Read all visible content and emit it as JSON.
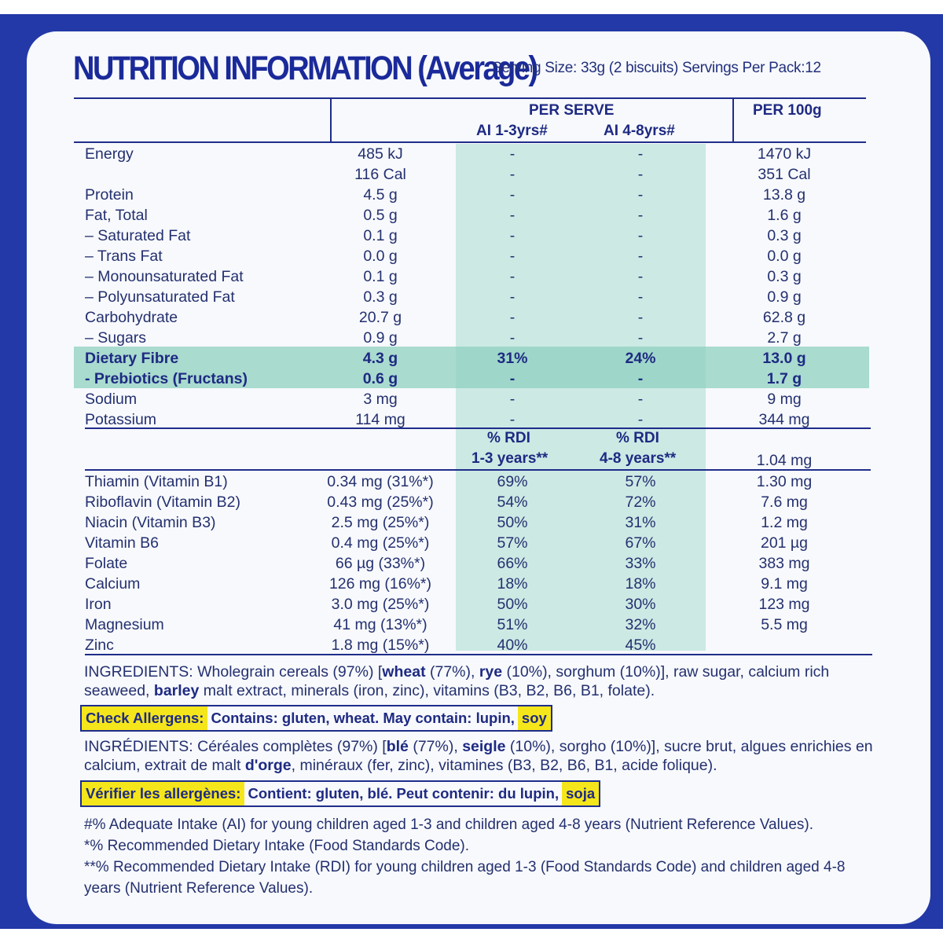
{
  "title": "NUTRITION INFORMATION (Average)",
  "serving_info": "Serving Size: 33g (2 biscuits)  Servings Per Pack:12",
  "headers": {
    "per_serve": "PER SERVE",
    "ai_1_3": "AI 1-3yrs#",
    "ai_4_8": "AI 4-8yrs#",
    "per_100g": "PER 100g",
    "rdi_1_3_line1": "% RDI",
    "rdi_1_3_line2": "1-3 years**",
    "rdi_4_8_line1": "% RDI",
    "rdi_4_8_line2": "4-8 years**"
  },
  "nutrients": [
    {
      "name": "Energy",
      "serve": "485 kJ",
      "a13": "-",
      "a48": "-",
      "p100": "1470 kJ"
    },
    {
      "name": "",
      "serve": "116 Cal",
      "a13": "-",
      "a48": "-",
      "p100": "351 Cal"
    },
    {
      "name": "Protein",
      "serve": "4.5 g",
      "a13": "-",
      "a48": "-",
      "p100": "13.8 g"
    },
    {
      "name": "Fat, Total",
      "serve": "0.5 g",
      "a13": "-",
      "a48": "-",
      "p100": "1.6 g"
    },
    {
      "name": "– Saturated Fat",
      "serve": "0.1 g",
      "a13": "-",
      "a48": "-",
      "p100": "0.3 g"
    },
    {
      "name": "– Trans Fat",
      "serve": "0.0 g",
      "a13": "-",
      "a48": "-",
      "p100": "0.0 g"
    },
    {
      "name": "– Monounsaturated Fat",
      "serve": "0.1 g",
      "a13": "-",
      "a48": "-",
      "p100": "0.3 g"
    },
    {
      "name": "– Polyunsaturated Fat",
      "serve": "0.3 g",
      "a13": "-",
      "a48": "-",
      "p100": "0.9 g"
    },
    {
      "name": "Carbohydrate",
      "serve": "20.7 g",
      "a13": "-",
      "a48": "-",
      "p100": "62.8 g"
    },
    {
      "name": "– Sugars",
      "serve": "0.9 g",
      "a13": "-",
      "a48": "-",
      "p100": "2.7 g"
    },
    {
      "name": "Dietary Fibre",
      "serve": "4.3 g",
      "a13": "31%",
      "a48": "24%",
      "p100": "13.0 g"
    },
    {
      "name": "- Prebiotics (Fructans)",
      "serve": "0.6 g",
      "a13": "-",
      "a48": "-",
      "p100": "1.7 g"
    },
    {
      "name": "Sodium",
      "serve": "3 mg",
      "a13": "-",
      "a48": "-",
      "p100": "9 mg"
    },
    {
      "name": "Potassium",
      "serve": "114 mg",
      "a13": "-",
      "a48": "-",
      "p100": "344 mg"
    }
  ],
  "rdi_header_p100": "1.04 mg",
  "vitamins": [
    {
      "name": "Thiamin (Vitamin B1)",
      "serve": "0.34 mg (31%*)",
      "a13": "69%",
      "a48": "57%",
      "p100": "1.30 mg"
    },
    {
      "name": "Riboflavin (Vitamin B2)",
      "serve": "0.43 mg (25%*)",
      "a13": "54%",
      "a48": "72%",
      "p100": "7.6 mg"
    },
    {
      "name": "Niacin (Vitamin B3)",
      "serve": "2.5 mg (25%*)",
      "a13": "50%",
      "a48": "31%",
      "p100": "1.2 mg"
    },
    {
      "name": "Vitamin B6",
      "serve": "0.4 mg (25%*)",
      "a13": "57%",
      "a48": "67%",
      "p100": "201 µg"
    },
    {
      "name": "Folate",
      "serve": "66 µg (33%*)",
      "a13": "66%",
      "a48": "33%",
      "p100": "383 mg"
    },
    {
      "name": "Calcium",
      "serve": "126 mg (16%*)",
      "a13": "18%",
      "a48": "18%",
      "p100": "9.1 mg"
    },
    {
      "name": "Iron",
      "serve": "3.0 mg (25%*)",
      "a13": "50%",
      "a48": "30%",
      "p100": "123 mg"
    },
    {
      "name": "Magnesium",
      "serve": "41 mg (13%*)",
      "a13": "51%",
      "a48": "32%",
      "p100": "5.5 mg"
    },
    {
      "name": "Zinc",
      "serve": "1.8 mg (15%*)",
      "a13": "40%",
      "a48": "45%",
      "p100": ""
    }
  ],
  "ingredients_en": {
    "label": "INGREDIENTS:",
    "t1": " Wholegrain cereals (97%) [",
    "b1": "wheat",
    "t2": " (77%), ",
    "b2": "rye",
    "t3": " (10%), sorghum (10%)], raw sugar, calcium rich seaweed, ",
    "b3": "barley",
    "t4": " malt extract, minerals (iron, zinc), vitamins (B3, B2, B6, B1, folate)."
  },
  "allergen_en": {
    "label": "Check Allergens:",
    "text": "Contains: gluten, wheat. May contain: lupin,",
    "highlight": "soy"
  },
  "ingredients_fr": {
    "label": "INGRÉDIENTS:",
    "t1": " Céréales complètes (97%) [",
    "b1": "blé",
    "t2": " (77%), ",
    "b2": "seigle",
    "t3": " (10%), sorgho (10%)], sucre brut, algues enrichies en calcium, extrait de malt ",
    "b3": "d'orge",
    "t4": ", minéraux (fer, zinc), vitamines (B3, B2, B6, B1, acide folique)."
  },
  "allergen_fr": {
    "label": "Vérifier les allergènes:",
    "text": "Contient: gluten, blé.  Peut contenir: du lupin,",
    "highlight": "soja"
  },
  "footnotes": [
    "#% Adequate Intake (AI) for young children aged 1-3 and children aged 4-8 years (Nutrient Reference Values).",
    "*% Recommended Dietary Intake (Food Standards Code).",
    "**% Recommended Dietary Intake (RDI) for young children aged 1-3 (Food Standards Code) and children aged 4-8 years (Nutrient Reference Values)."
  ],
  "colors": {
    "brand_blue": "#2339a8",
    "text_navy": "#1a2a78",
    "column_shade": "#a9dccf",
    "allergen_highlight": "#f5e61b"
  }
}
